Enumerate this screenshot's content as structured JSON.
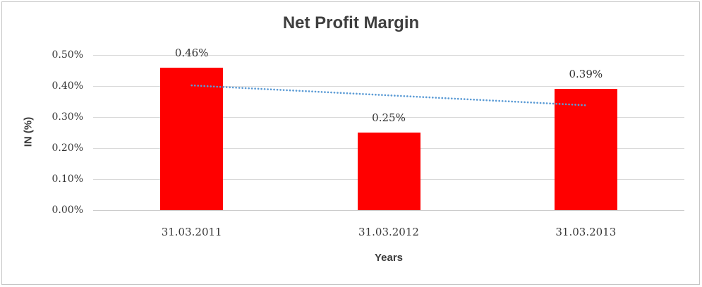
{
  "chart_data": {
    "type": "bar",
    "title": "Net Profit Margin",
    "xlabel": "Years",
    "ylabel": "IN (%)",
    "categories": [
      "31.03.2011",
      "31.03.2012",
      "31.03.2013"
    ],
    "values": [
      0.46,
      0.25,
      0.39
    ],
    "data_labels": [
      "0.46%",
      "0.25%",
      "0.39%"
    ],
    "yticks": [
      {
        "value": 0.0,
        "label": "0.00%"
      },
      {
        "value": 0.1,
        "label": "0.10%"
      },
      {
        "value": 0.2,
        "label": "0.20%"
      },
      {
        "value": 0.3,
        "label": "0.30%"
      },
      {
        "value": 0.4,
        "label": "0.40%"
      },
      {
        "value": 0.5,
        "label": "0.50%"
      }
    ],
    "ylim": [
      0,
      0.5
    ],
    "grid": true,
    "legend": "none",
    "bar_color": "#ff0000",
    "trendline": {
      "type": "linear",
      "style": "dotted",
      "color": "#5b9bd5",
      "start_value": 0.402,
      "end_value": 0.338
    }
  }
}
